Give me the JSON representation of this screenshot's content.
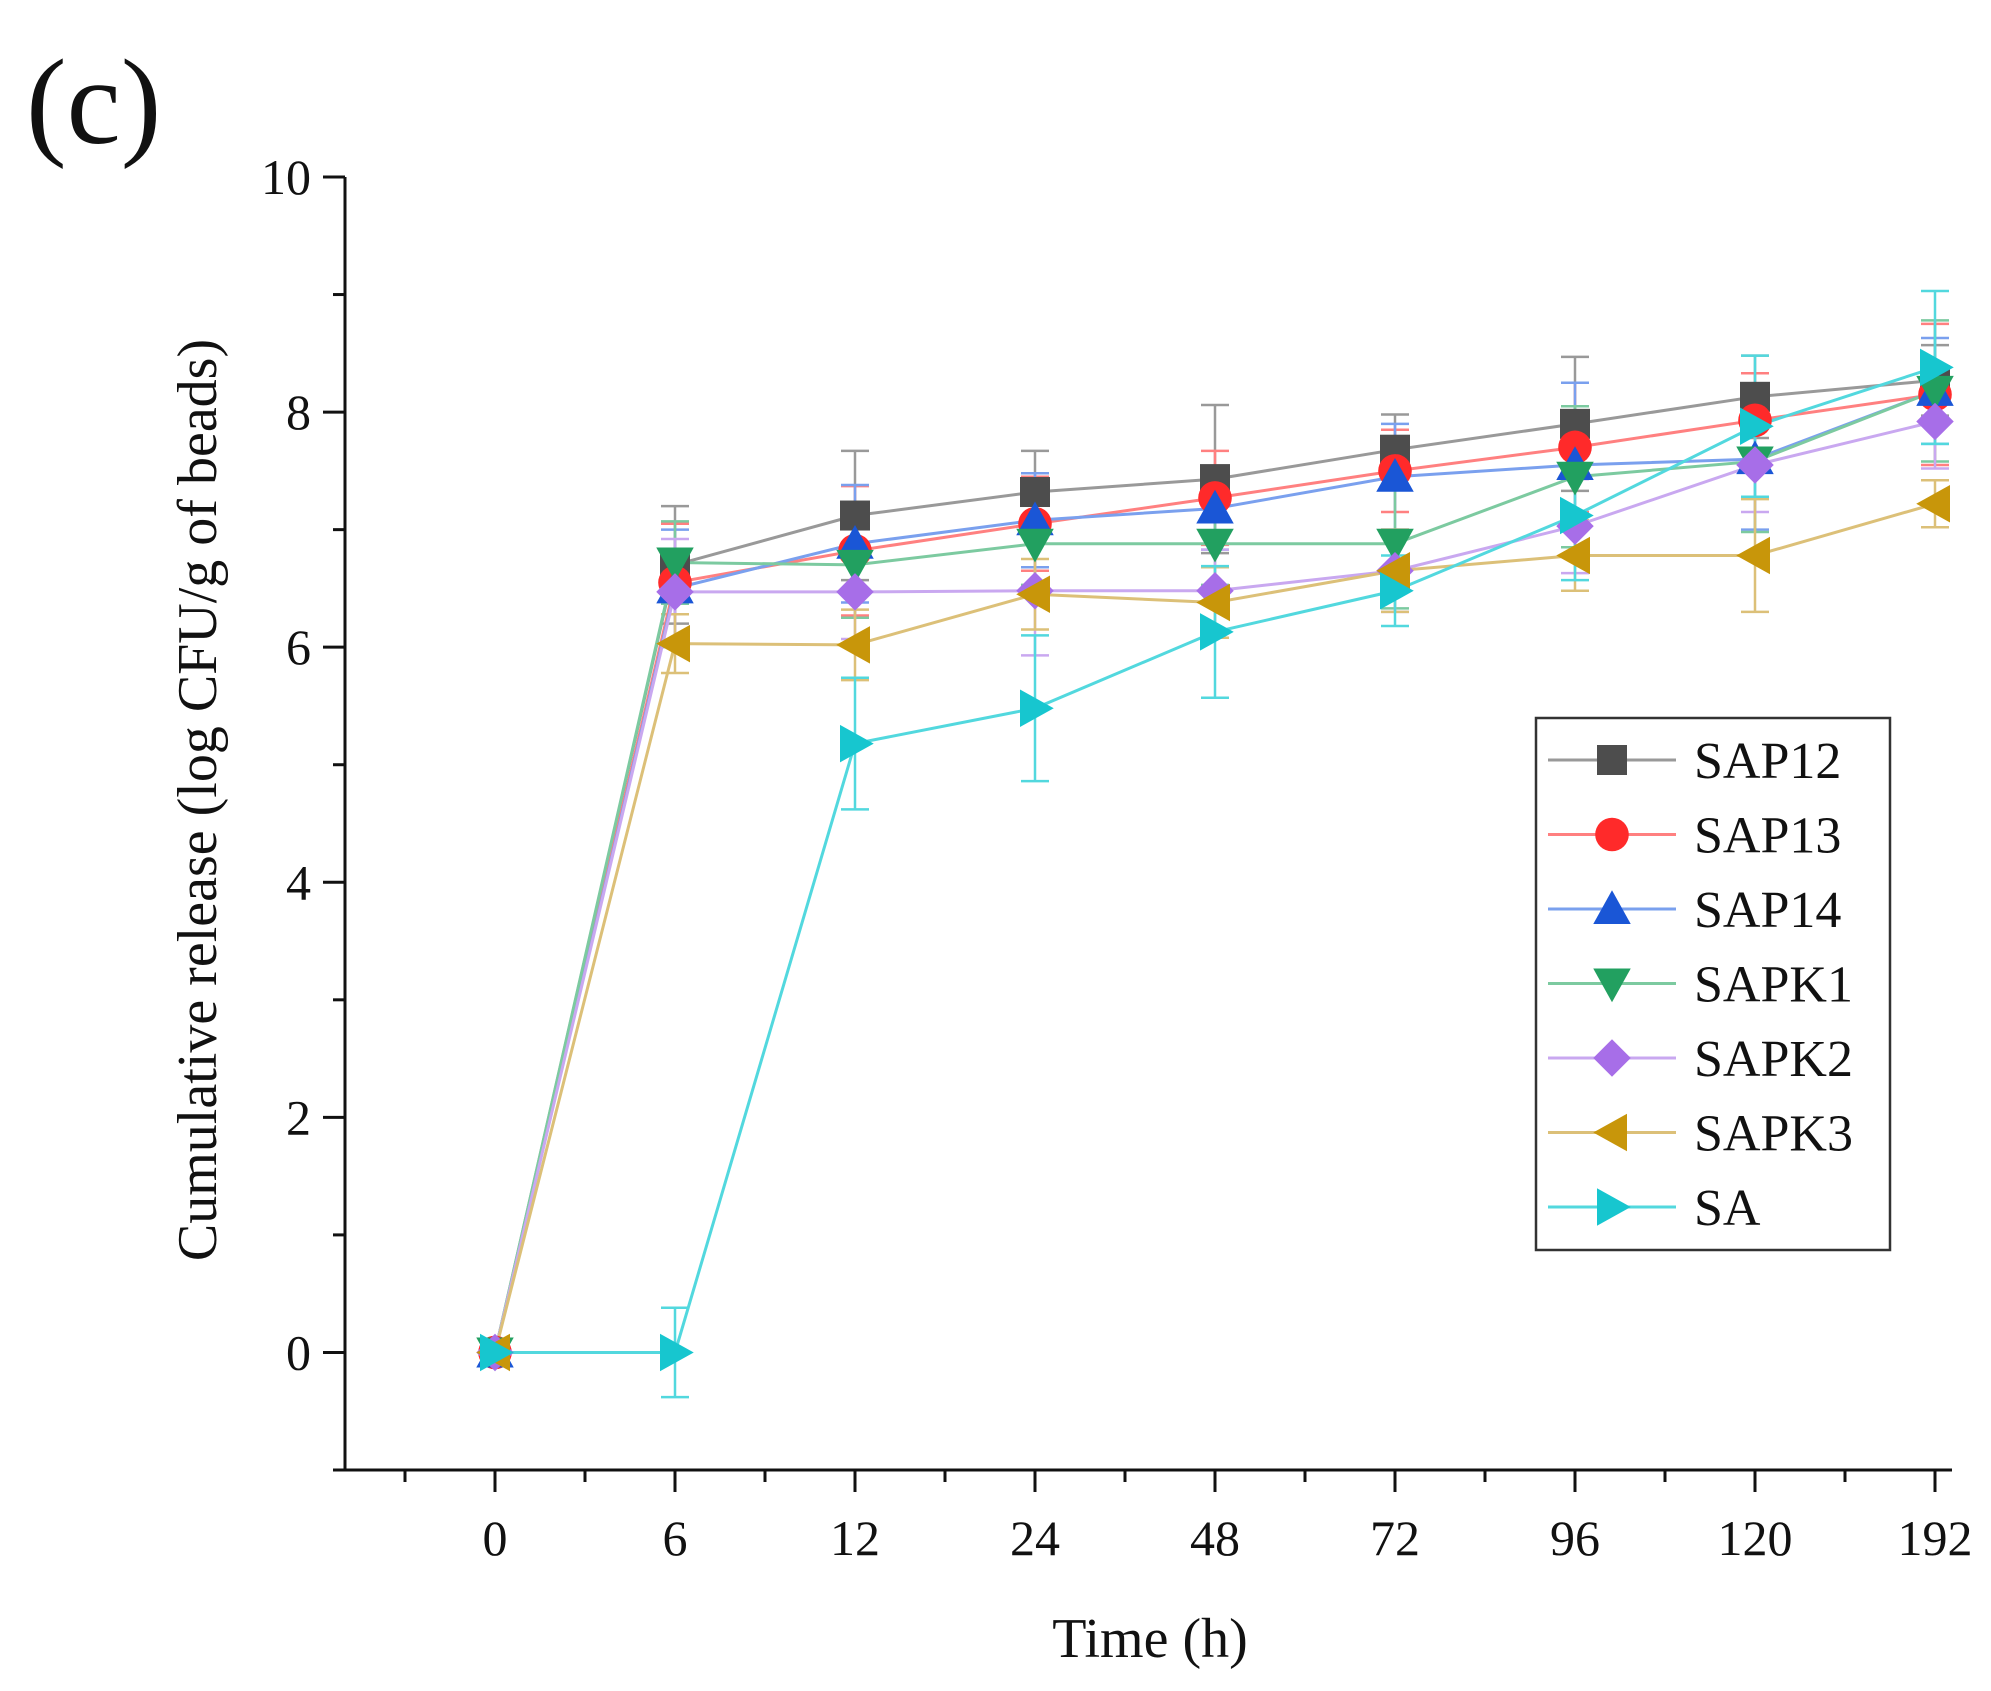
{
  "panel_label": "(c)",
  "chart_data": {
    "type": "line",
    "title": "",
    "xlabel": "Time (h)",
    "ylabel": "Cumulative release (log CFU/g of beads)",
    "x_scale": "categorical",
    "categories": [
      "0",
      "6",
      "12",
      "24",
      "48",
      "72",
      "96",
      "120",
      "192"
    ],
    "ylim": [
      -1,
      10
    ],
    "yticks": [
      0,
      2,
      4,
      6,
      8,
      10
    ],
    "grid": false,
    "legend_position": "center-right",
    "series": [
      {
        "name": "SAP12",
        "marker": "square",
        "color": "#4d4d4d",
        "line_color": "#999999",
        "values": [
          0,
          6.7,
          7.12,
          7.32,
          7.43,
          7.68,
          7.9,
          8.13,
          8.27
        ],
        "errors": [
          0,
          0.5,
          0.55,
          0.35,
          0.63,
          0.3,
          0.57,
          0.35,
          0.3
        ]
      },
      {
        "name": "SAP13",
        "marker": "circle",
        "color": "#ff2a2a",
        "line_color": "#ff8080",
        "values": [
          0,
          6.55,
          6.82,
          7.05,
          7.27,
          7.5,
          7.7,
          7.93,
          8.15
        ],
        "errors": [
          0,
          0.5,
          0.55,
          0.4,
          0.4,
          0.35,
          0.55,
          0.4,
          0.6
        ]
      },
      {
        "name": "SAP14",
        "marker": "triangle-up",
        "color": "#1a56d6",
        "line_color": "#7aa0ee",
        "values": [
          0,
          6.5,
          6.88,
          7.08,
          7.18,
          7.45,
          7.55,
          7.6,
          8.18
        ],
        "errors": [
          0,
          0.5,
          0.5,
          0.4,
          0.35,
          0.45,
          0.7,
          0.6,
          0.45
        ]
      },
      {
        "name": "SAPK1",
        "marker": "triangle-down",
        "color": "#22a060",
        "line_color": "#7ccaa0",
        "values": [
          0,
          6.72,
          6.7,
          6.88,
          6.88,
          6.88,
          7.45,
          7.58,
          8.18
        ],
        "errors": [
          0,
          0.35,
          0.45,
          0.35,
          0.35,
          0.55,
          0.6,
          0.6,
          0.6
        ]
      },
      {
        "name": "SAPK2",
        "marker": "diamond",
        "color": "#a76ee8",
        "line_color": "#c9a8f0",
        "values": [
          0,
          6.47,
          6.47,
          6.48,
          6.48,
          6.65,
          7.03,
          7.55,
          7.92
        ],
        "errors": [
          0,
          0.45,
          0.4,
          0.55,
          0.35,
          0.35,
          0.4,
          0.4,
          0.4
        ]
      },
      {
        "name": "SAPK3",
        "marker": "triangle-left",
        "color": "#c8960a",
        "line_color": "#dcc078",
        "values": [
          0,
          6.03,
          6.02,
          6.45,
          6.38,
          6.65,
          6.78,
          6.78,
          7.22
        ],
        "errors": [
          0,
          0.25,
          0.3,
          0.3,
          0.3,
          0.35,
          0.3,
          0.48,
          0.2
        ]
      },
      {
        "name": "SA",
        "marker": "triangle-right",
        "color": "#17c6cf",
        "line_color": "#52d8de",
        "values": [
          0,
          0,
          5.18,
          5.48,
          6.13,
          6.48,
          7.12,
          7.88,
          8.38
        ],
        "errors": [
          0,
          0.38,
          0.56,
          0.62,
          0.56,
          0.3,
          0.55,
          0.6,
          0.65
        ]
      }
    ]
  }
}
